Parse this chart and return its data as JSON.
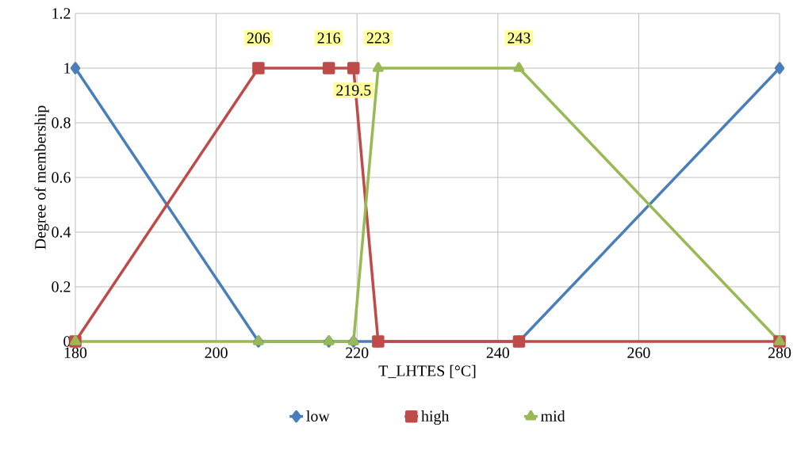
{
  "chart_data": {
    "type": "line",
    "xlabel": "T_LHTES [°C]",
    "ylabel": "Degree of membership",
    "x": [
      180,
      206,
      216,
      219.5,
      223,
      243,
      280
    ],
    "series": [
      {
        "name": "low",
        "color": "#4a7ebb",
        "marker": "diamond",
        "values": [
          1,
          0,
          0,
          0,
          0,
          0,
          1
        ]
      },
      {
        "name": "high",
        "color": "#be4b48",
        "marker": "square",
        "values": [
          0,
          1,
          1,
          1,
          0,
          0,
          0
        ]
      },
      {
        "name": "mid",
        "color": "#98b954",
        "marker": "triangle",
        "values": [
          0,
          0,
          0,
          0,
          1,
          1,
          0
        ]
      }
    ],
    "xlim": [
      180,
      280
    ],
    "xticks": [
      180,
      200,
      220,
      240,
      260,
      280
    ],
    "ylim": [
      0,
      1.2
    ],
    "yticks": [
      0,
      0.2,
      0.4,
      0.6,
      0.8,
      1,
      1.2
    ],
    "grid": true,
    "legend": "bottom",
    "line_style": "solid",
    "annotations": [
      {
        "text": "206",
        "x": 206,
        "y": 1
      },
      {
        "text": "216",
        "x": 216,
        "y": 1
      },
      {
        "text": "219.5",
        "x": 219.5,
        "y": 1
      },
      {
        "text": "223",
        "x": 223,
        "y": 1
      },
      {
        "text": "243",
        "x": 243,
        "y": 1
      }
    ]
  }
}
